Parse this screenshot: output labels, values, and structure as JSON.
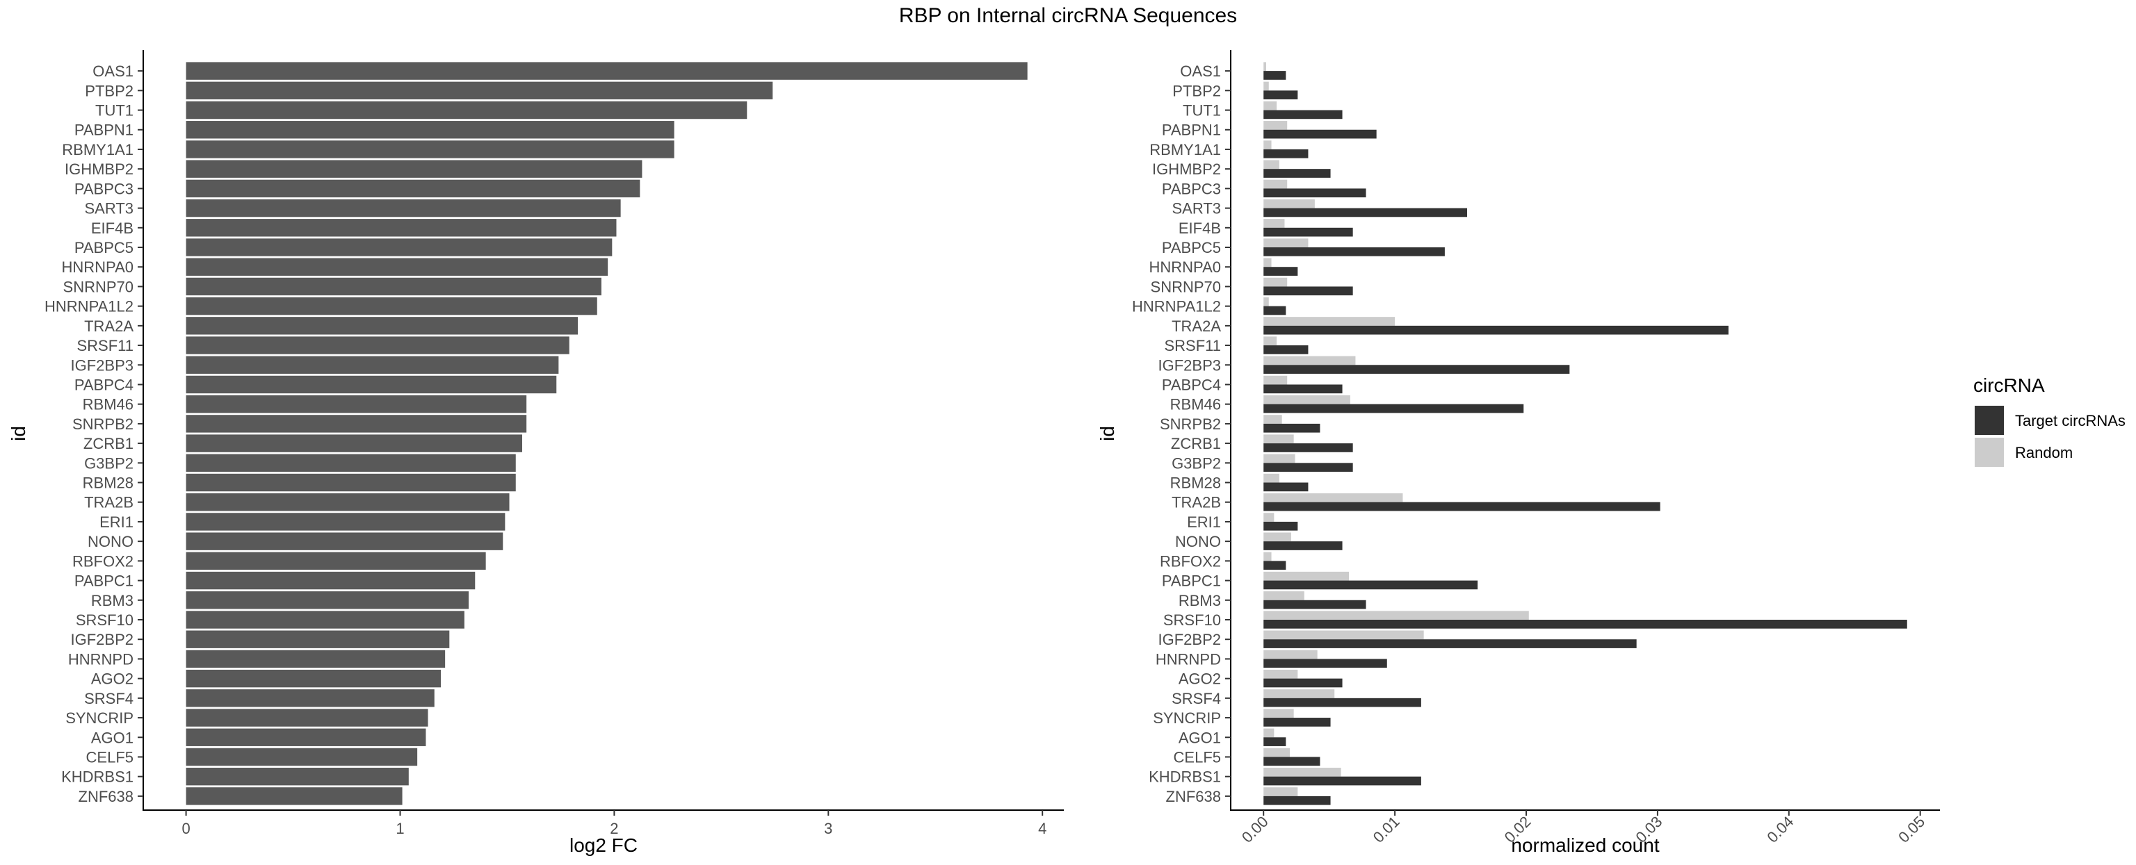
{
  "title": "RBP on Internal circRNA Sequences",
  "chart_data": [
    {
      "type": "bar",
      "orientation": "horizontal",
      "xlabel": "log2 FC",
      "ylabel": "id",
      "xlim": [
        -0.2,
        4.1
      ],
      "xticks": [
        "0",
        "1",
        "2",
        "3",
        "4"
      ],
      "grid": false,
      "categories": [
        "OAS1",
        "PTBP2",
        "TUT1",
        "PABPN1",
        "RBMY1A1",
        "IGHMBP2",
        "PABPC3",
        "SART3",
        "EIF4B",
        "PABPC5",
        "HNRNPA0",
        "SNRNP70",
        "HNRNPA1L2",
        "TRA2A",
        "SRSF11",
        "IGF2BP3",
        "PABPC4",
        "RBM46",
        "SNRPB2",
        "ZCRB1",
        "G3BP2",
        "RBM28",
        "TRA2B",
        "ERI1",
        "NONO",
        "RBFOX2",
        "PABPC1",
        "RBM3",
        "SRSF10",
        "IGF2BP2",
        "HNRNPD",
        "AGO2",
        "SRSF4",
        "SYNCRIP",
        "AGO1",
        "CELF5",
        "KHDRBS1",
        "ZNF638"
      ],
      "values": [
        3.93,
        2.74,
        2.62,
        2.28,
        2.28,
        2.13,
        2.12,
        2.03,
        2.01,
        1.99,
        1.97,
        1.94,
        1.92,
        1.83,
        1.79,
        1.74,
        1.73,
        1.59,
        1.59,
        1.57,
        1.54,
        1.54,
        1.51,
        1.49,
        1.48,
        1.4,
        1.35,
        1.32,
        1.3,
        1.23,
        1.21,
        1.19,
        1.16,
        1.13,
        1.12,
        1.08,
        1.04,
        1.01
      ],
      "bar_color": "#595959"
    },
    {
      "type": "bar",
      "orientation": "horizontal",
      "grouped": true,
      "xlabel": "normalized count",
      "ylabel": "id",
      "xlim": [
        -0.0025,
        0.0515
      ],
      "xticks": [
        "0.00",
        "0.01",
        "0.02",
        "0.03",
        "0.04",
        "0.05"
      ],
      "grid": false,
      "legend_title": "circRNA",
      "legend_position": "right",
      "categories": [
        "OAS1",
        "PTBP2",
        "TUT1",
        "PABPN1",
        "RBMY1A1",
        "IGHMBP2",
        "PABPC3",
        "SART3",
        "EIF4B",
        "PABPC5",
        "HNRNPA0",
        "SNRNP70",
        "HNRNPA1L2",
        "TRA2A",
        "SRSF11",
        "IGF2BP3",
        "PABPC4",
        "RBM46",
        "SNRPB2",
        "ZCRB1",
        "G3BP2",
        "RBM28",
        "TRA2B",
        "ERI1",
        "NONO",
        "RBFOX2",
        "PABPC1",
        "RBM3",
        "SRSF10",
        "IGF2BP2",
        "HNRNPD",
        "AGO2",
        "SRSF4",
        "SYNCRIP",
        "AGO1",
        "CELF5",
        "KHDRBS1",
        "ZNF638"
      ],
      "series": [
        {
          "name": "Target circRNAs",
          "color": "#333333",
          "values": [
            0.0017,
            0.0026,
            0.006,
            0.0086,
            0.0034,
            0.0051,
            0.0078,
            0.0155,
            0.0068,
            0.0138,
            0.0026,
            0.0068,
            0.0017,
            0.0354,
            0.0034,
            0.0233,
            0.006,
            0.0198,
            0.0043,
            0.0068,
            0.0068,
            0.0034,
            0.0302,
            0.0026,
            0.006,
            0.0017,
            0.0163,
            0.0078,
            0.049,
            0.0284,
            0.0094,
            0.006,
            0.012,
            0.0051,
            0.0017,
            0.0043,
            0.012,
            0.0051
          ]
        },
        {
          "name": "Random",
          "color": "#cccccc",
          "values": [
            0.0002,
            0.0004,
            0.001,
            0.0018,
            0.0006,
            0.0012,
            0.0018,
            0.0039,
            0.0016,
            0.0034,
            0.0006,
            0.0018,
            0.0004,
            0.01,
            0.001,
            0.007,
            0.0018,
            0.0066,
            0.0014,
            0.0023,
            0.0024,
            0.0012,
            0.0106,
            0.0008,
            0.0021,
            0.0006,
            0.0065,
            0.0031,
            0.0202,
            0.0122,
            0.0041,
            0.0026,
            0.0054,
            0.0023,
            0.0008,
            0.002,
            0.0059,
            0.0026
          ]
        }
      ]
    }
  ]
}
